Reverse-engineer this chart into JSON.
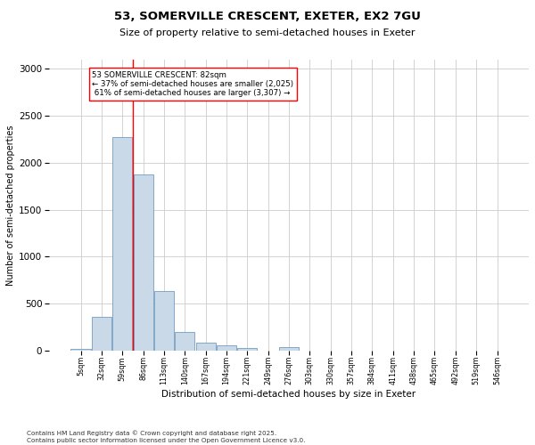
{
  "title1": "53, SOMERVILLE CRESCENT, EXETER, EX2 7GU",
  "title2": "Size of property relative to semi-detached houses in Exeter",
  "xlabel": "Distribution of semi-detached houses by size in Exeter",
  "ylabel": "Number of semi-detached properties",
  "categories": [
    "5sqm",
    "32sqm",
    "59sqm",
    "86sqm",
    "113sqm",
    "140sqm",
    "167sqm",
    "194sqm",
    "221sqm",
    "249sqm",
    "276sqm",
    "303sqm",
    "330sqm",
    "357sqm",
    "384sqm",
    "411sqm",
    "438sqm",
    "465sqm",
    "492sqm",
    "519sqm",
    "546sqm"
  ],
  "values": [
    15,
    360,
    2270,
    1880,
    630,
    195,
    85,
    55,
    30,
    0,
    35,
    0,
    0,
    0,
    0,
    0,
    0,
    0,
    0,
    0,
    0
  ],
  "bar_color": "#c9d9e8",
  "bar_edge_color": "#5b8db8",
  "property_line_x": 2.5,
  "property_sqm": 82,
  "pct_smaller": 37,
  "count_smaller": 2025,
  "pct_larger": 61,
  "count_larger": 3307,
  "ylim": [
    0,
    3100
  ],
  "grid_color": "#cccccc",
  "footnote1": "Contains HM Land Registry data © Crown copyright and database right 2025.",
  "footnote2": "Contains public sector information licensed under the Open Government Licence v3.0."
}
